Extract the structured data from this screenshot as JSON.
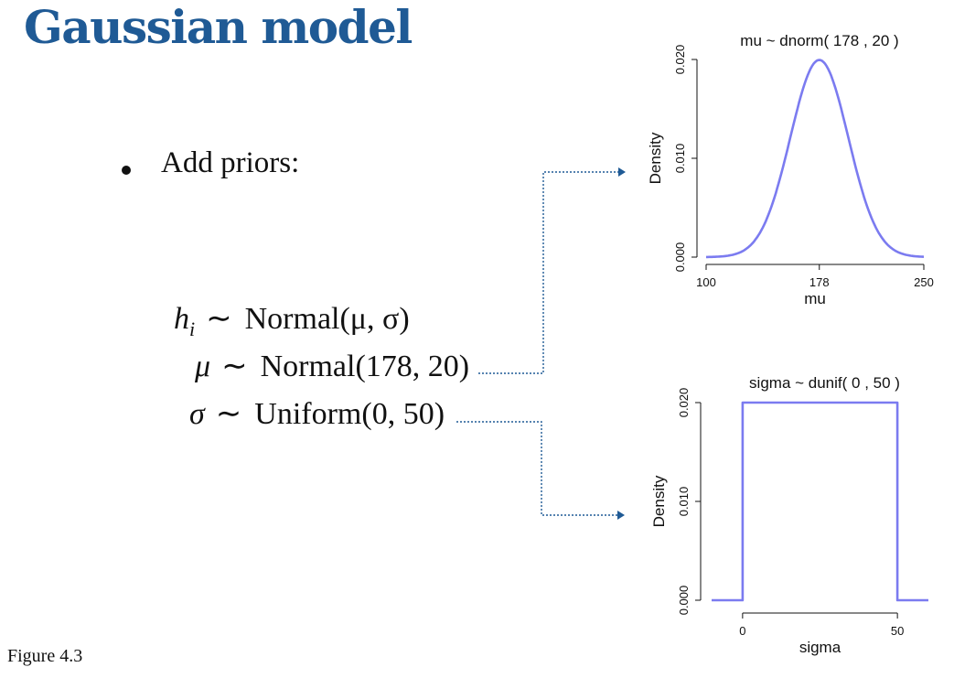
{
  "slide": {
    "title": "Gaussian model",
    "bullet": "Add priors:",
    "equations": [
      {
        "lhs": "h",
        "sub": "i",
        "rhs": "Normal(μ, σ)"
      },
      {
        "lhs": "μ",
        "sub": "",
        "rhs": "Normal(178, 20)"
      },
      {
        "lhs": "σ",
        "sub": "",
        "rhs": "Uniform(0, 50)"
      }
    ],
    "operator": "∼",
    "caption": "Figure 4.3",
    "arrow_color": "#1f5a95"
  },
  "chart_data": [
    {
      "type": "line",
      "title": "mu ~ dnorm( 178 , 20 )",
      "xlabel": "mu",
      "ylabel": "Density",
      "xlim": [
        100,
        250
      ],
      "ylim": [
        0,
        0.02
      ],
      "xticks": [
        100,
        178,
        250
      ],
      "xtick_labels": [
        "100",
        "178",
        "250"
      ],
      "yticks": [
        0.0,
        0.01,
        0.02
      ],
      "ytick_labels": [
        "0.000",
        "0.010",
        "0.020"
      ],
      "distribution": {
        "family": "normal",
        "mean": 178,
        "sd": 20
      },
      "series": [
        {
          "color": "#7b7bf0",
          "x": [
            100,
            110,
            120,
            130,
            140,
            150,
            160,
            170,
            178,
            186,
            196,
            206,
            216,
            226,
            236,
            246,
            250
          ],
          "y": [
            0.0,
            0.0001,
            0.0003,
            0.0011,
            0.0033,
            0.0077,
            0.0134,
            0.0184,
            0.0199,
            0.0184,
            0.0134,
            0.0077,
            0.0033,
            0.0011,
            0.0003,
            0.0001,
            0.0
          ]
        }
      ],
      "grid": false
    },
    {
      "type": "line",
      "title": "sigma ~ dunif( 0 , 50 )",
      "xlabel": "sigma",
      "ylabel": "Density",
      "xlim": [
        -10,
        60
      ],
      "ylim": [
        0,
        0.02
      ],
      "xticks": [
        0,
        50
      ],
      "xtick_labels": [
        "0",
        "50"
      ],
      "yticks": [
        0.0,
        0.01,
        0.02
      ],
      "ytick_labels": [
        "0.000",
        "0.010",
        "0.020"
      ],
      "distribution": {
        "family": "uniform",
        "min": 0,
        "max": 50
      },
      "series": [
        {
          "color": "#7b7bf0",
          "x": [
            -10,
            0,
            0,
            50,
            50,
            60
          ],
          "y": [
            0,
            0,
            0.02,
            0.02,
            0,
            0
          ]
        }
      ],
      "grid": false
    }
  ]
}
